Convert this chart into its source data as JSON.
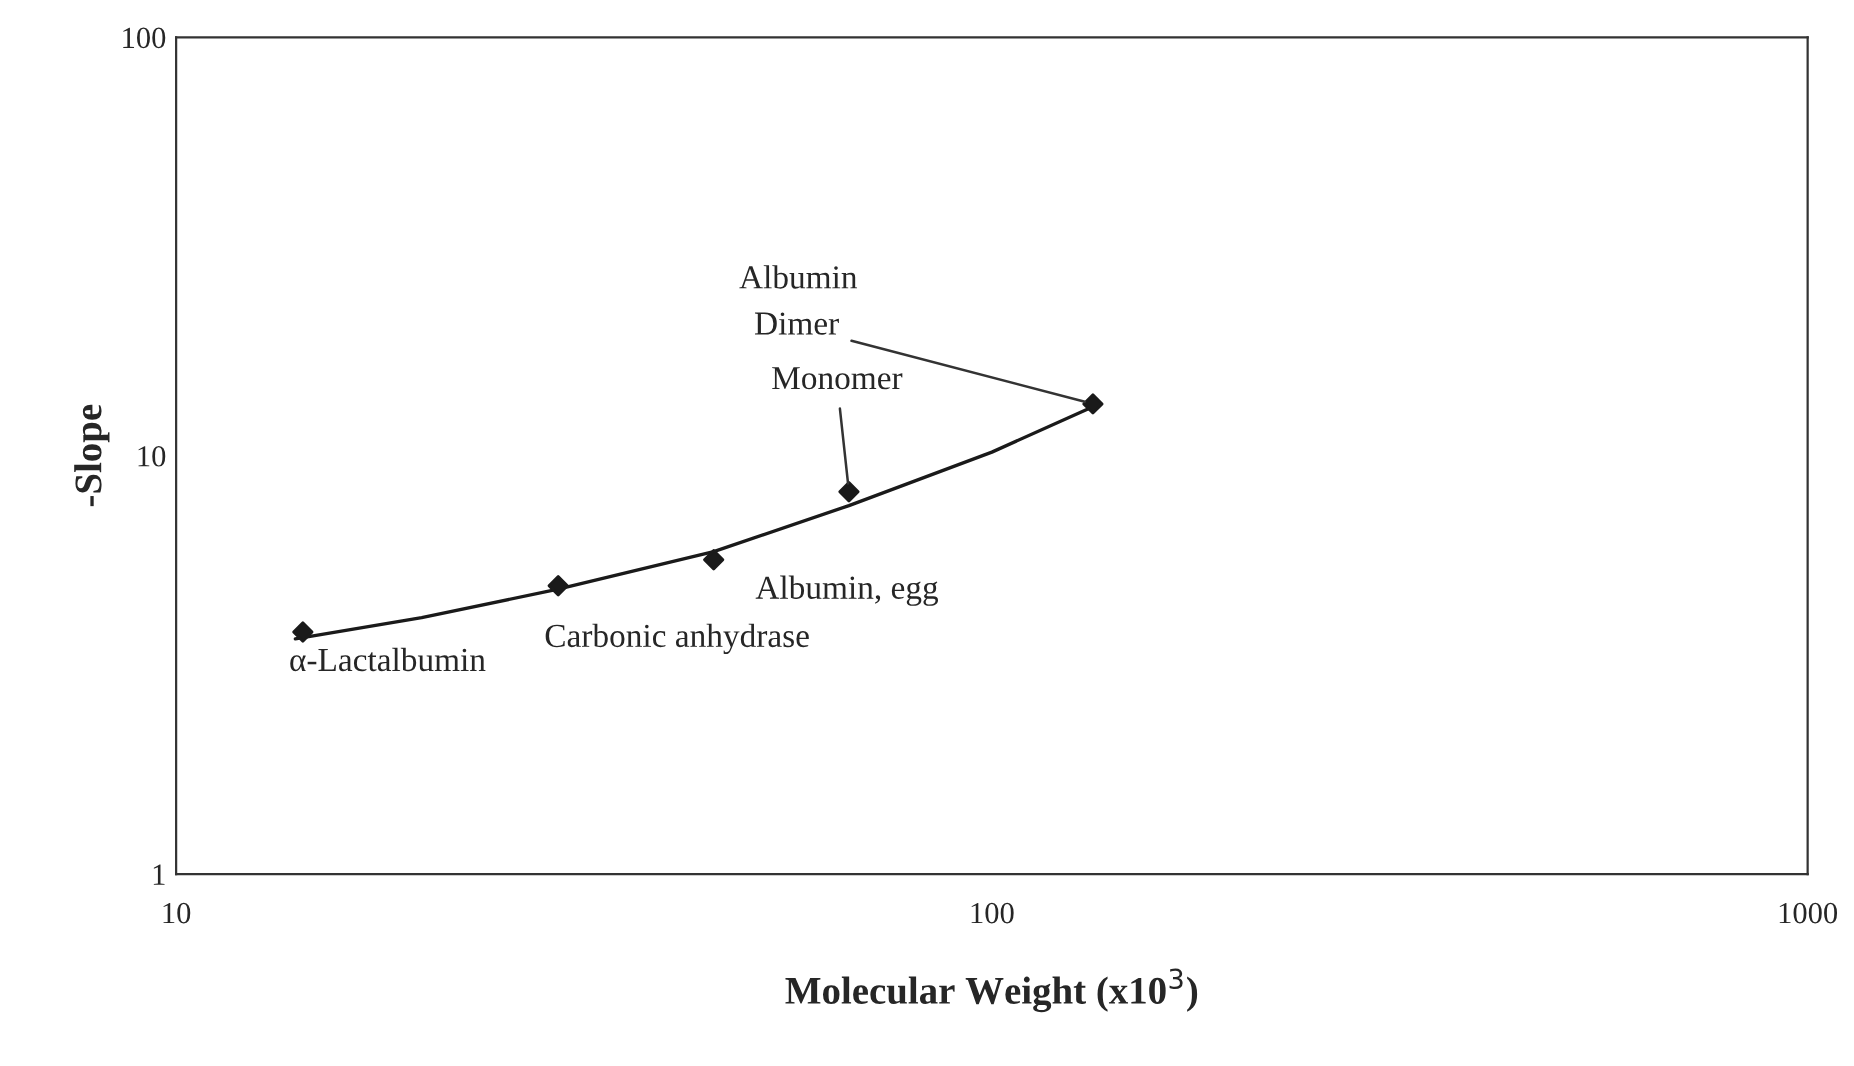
{
  "chart_data": {
    "type": "scatter",
    "xlabel": "Molecular Weight (x10$^{3}$)",
    "ylabel": "-Slope",
    "log": "xy",
    "xlim": [
      10,
      1000
    ],
    "ylim": [
      1,
      100
    ],
    "xticks": [
      10,
      100,
      1000
    ],
    "yticks": [
      1,
      10,
      100
    ],
    "grid": false,
    "marker": "diamond",
    "series": [
      {
        "color": "#1a1a1a",
        "x": [
          14.3,
          29.4,
          45.6,
          66.8,
          133
        ],
        "values": [
          3.79,
          4.89,
          5.64,
          8.2,
          13.3
        ]
      },
      {
        "type": "line",
        "color": "#1a1a1a",
        "line_style": "solid",
        "marker": "none",
        "x": [
          14,
          20,
          29.4,
          45.6,
          66.8,
          100,
          133
        ],
        "values": [
          3.65,
          4.1,
          4.8,
          5.9,
          7.6,
          10.2,
          13.1
        ]
      }
    ],
    "annotations": [
      {
        "text": "α-Lactalbumin",
        "x": 14.3,
        "y": 3.79
      },
      {
        "text": "Carbonic anhydrase",
        "x": 29.4,
        "y": 4.89
      },
      {
        "text": "Albumin, egg",
        "x": 45.6,
        "y": 5.64
      },
      {
        "text": "Monomer",
        "x": 66.8,
        "y": 8.2
      },
      {
        "text": "Dimer",
        "x": 133,
        "y": 13.3
      },
      "Albumin"
    ]
  }
}
